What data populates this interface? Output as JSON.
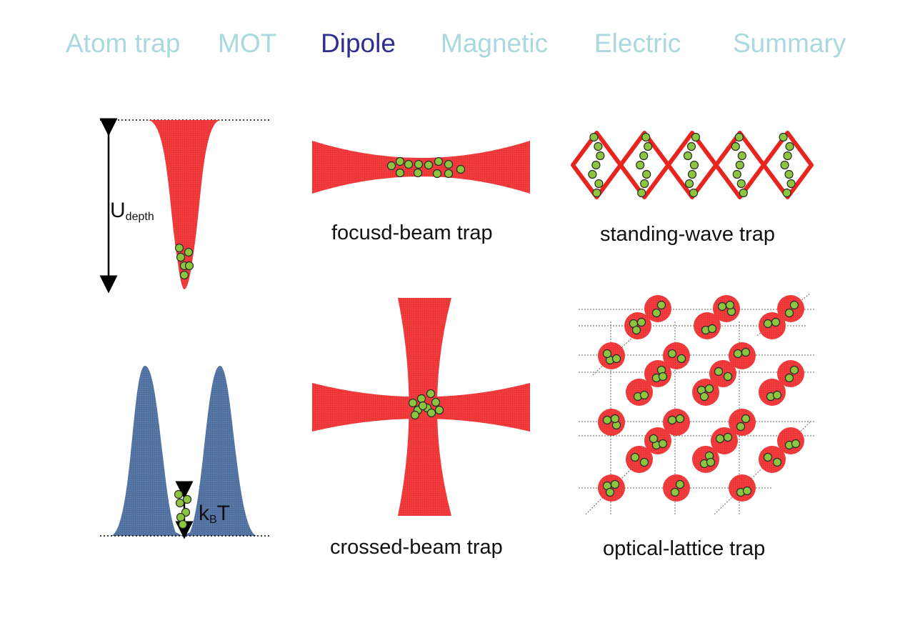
{
  "nav": {
    "items": [
      {
        "label": "Atom trap",
        "active": false
      },
      {
        "label": "MOT",
        "active": false
      },
      {
        "label": "Dipole",
        "active": true
      },
      {
        "label": "Magnetic",
        "active": false
      },
      {
        "label": "Electric",
        "active": false
      },
      {
        "label": "Summary",
        "active": false
      }
    ]
  },
  "labels": {
    "focused": "focusd-beam trap",
    "standing": "standing-wave trap",
    "crossed": "crossed-beam trap",
    "lattice": "optical-lattice trap"
  },
  "symbols": {
    "u_main": "U",
    "u_sub": "depth",
    "k_main": "k",
    "k_sub": "B",
    "k_tail": "T"
  },
  "colors": {
    "nav_inactive": "#a9d8de",
    "nav_active": "#2f2f8f",
    "beam_red": "#f03c3c",
    "potential_blue": "#5676a6",
    "atom_green": "#8cc63f"
  }
}
